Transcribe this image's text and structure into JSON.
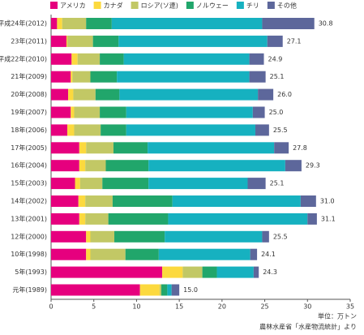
{
  "chart_data": {
    "type": "stacked-barh",
    "categories": [
      "平成24年(2012)",
      "23年(2011)",
      "平成22年(2010)",
      "21年(2009)",
      "20年(2008)",
      "19年(2007)",
      "18年(2006)",
      "17年(2005)",
      "16年(2004)",
      "15年(2003)",
      "14年(2002)",
      "13年(2001)",
      "12年(2000)",
      "10年(1998)",
      "5年(1993)",
      "元年(1989)"
    ],
    "series": [
      {
        "name": "アメリカ",
        "color": "#e6007e",
        "values": [
          0.7,
          1.8,
          2.4,
          2.3,
          2.0,
          2.3,
          1.9,
          3.3,
          3.3,
          2.8,
          3.2,
          3.3,
          4.1,
          4.1,
          13.0,
          10.4
        ]
      },
      {
        "name": "カナダ",
        "color": "#fcd93e",
        "values": [
          0.6,
          0.1,
          0.7,
          0.2,
          0.6,
          0.4,
          0.8,
          0.8,
          0.7,
          0.6,
          0.8,
          0.7,
          0.5,
          0.5,
          2.4,
          2.3
        ]
      },
      {
        "name": "ロシア(ソ連)",
        "color": "#c2c865",
        "values": [
          2.8,
          3.0,
          2.6,
          2.1,
          2.6,
          3.0,
          3.1,
          3.2,
          2.4,
          2.6,
          3.2,
          2.7,
          2.8,
          4.1,
          2.3,
          0.2
        ]
      },
      {
        "name": "ノルウェー",
        "color": "#21a66b",
        "values": [
          3.0,
          3.0,
          2.8,
          3.1,
          2.8,
          3.1,
          3.0,
          4.0,
          5.0,
          5.4,
          7.0,
          7.0,
          5.9,
          3.9,
          1.7,
          0.7
        ]
      },
      {
        "name": "チリ",
        "color": "#16b1c0",
        "values": [
          17.6,
          17.4,
          14.7,
          15.5,
          16.2,
          14.8,
          15.1,
          14.8,
          16.0,
          11.6,
          15.0,
          16.3,
          11.4,
          10.7,
          4.3,
          0.5
        ]
      },
      {
        "name": "その他",
        "color": "#5d679b",
        "values": [
          6.1,
          1.8,
          1.7,
          1.9,
          1.8,
          1.4,
          1.6,
          1.7,
          1.9,
          2.1,
          1.8,
          1.1,
          0.8,
          0.8,
          0.6,
          0.9
        ]
      }
    ],
    "totals": [
      30.8,
      27.1,
      24.9,
      25.1,
      26.0,
      25.0,
      25.5,
      27.8,
      29.3,
      25.1,
      31.0,
      31.1,
      25.5,
      24.1,
      24.3,
      15.0
    ],
    "total_labels": [
      "30.8",
      "27.1",
      "24.9",
      "25.1",
      "26.0",
      "25.0",
      "25.5",
      "27.8",
      "29.3",
      "25.1",
      "31.0",
      "31.1",
      "25.5",
      "24.1",
      "24.3",
      "15.0"
    ],
    "xlim": [
      0,
      35
    ],
    "xticks": [
      0,
      5,
      10,
      15,
      20,
      25,
      30,
      35
    ],
    "unit_note": "単位：万トン",
    "source": "農林水産省「水産物流統計」より"
  }
}
